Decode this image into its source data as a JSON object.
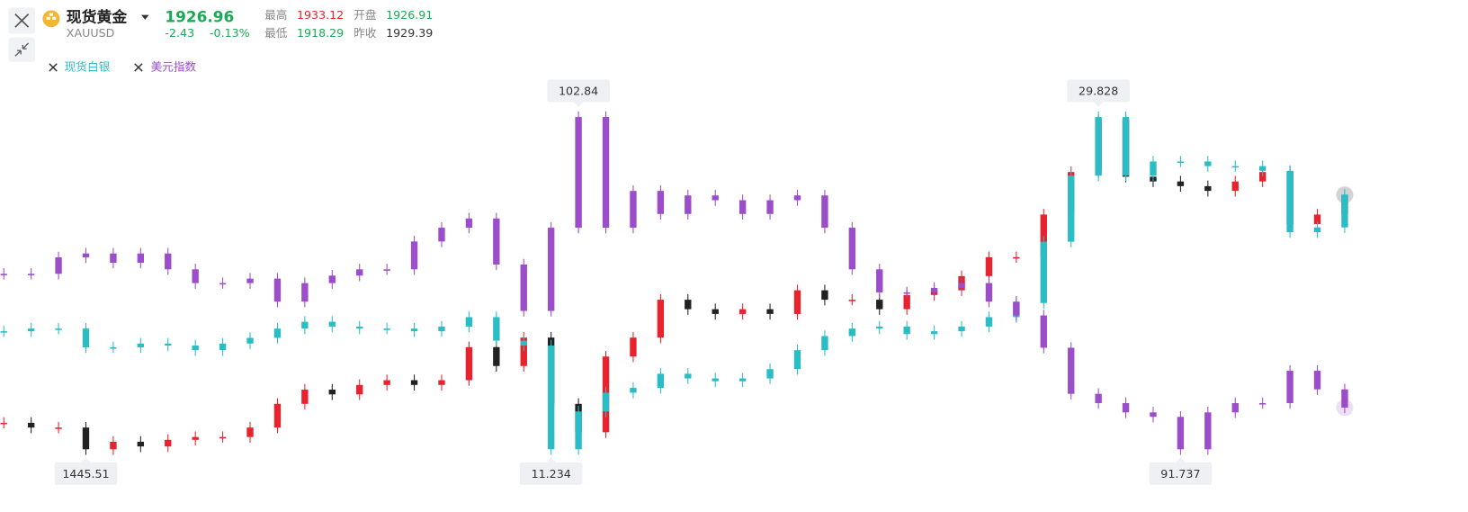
{
  "header": {
    "title": "现货黄金",
    "symbol": "XAUUSD",
    "last": "1926.96",
    "change": "-2.43",
    "change_pct": "-0.13%",
    "high_label": "最高",
    "high": "1933.12",
    "open_label": "开盘",
    "open": "1926.91",
    "low_label": "最低",
    "low": "1918.29",
    "prev_label": "昨收",
    "prev": "1929.39"
  },
  "chart_data": {
    "type": "candlestick",
    "series": [
      {
        "name": "现货黄金",
        "up_color": "#e8232d",
        "down_color": "#222222",
        "ylim": [
          1445.51,
          2075
        ],
        "values": [
          1495.7,
          1486.7,
          1486.7,
          1445.51,
          1459.8,
          1450.9,
          1463.4,
          1468.8,
          1468.8,
          1486.7,
          1531.6,
          1558.5,
          1549.5,
          1567.4,
          1576.4,
          1567.4,
          1576.4,
          1639.1,
          1603.3,
          1657.1,
          1531.6,
          1477.8,
          1621.2,
          1657.1,
          1728.8,
          1710.9,
          1701.9,
          1710.9,
          1701.9,
          1746.7,
          1728.8,
          1728.8,
          1710.9,
          1737.8,
          1746.7,
          1773.6,
          1809.5,
          1809.5,
          1890.2,
          1970.8,
          2069.5,
          1961.9,
          1952.9,
          1944,
          1935,
          1952.9,
          1970.8,
          1872.2,
          1890.2,
          1926.96
        ]
      },
      {
        "name": "现货白银",
        "up_color": "#2bbdc6",
        "down_color": "#2bbdc6",
        "ylim": [
          11.234,
          29.828
        ],
        "values": [
          17.84,
          17.99,
          17.99,
          16.94,
          16.94,
          17.15,
          17.04,
          16.78,
          17.15,
          17.47,
          17.99,
          18.37,
          18.1,
          17.99,
          17.99,
          17.84,
          18.1,
          18.63,
          17.31,
          17.04,
          11.234,
          13.35,
          14.4,
          14.67,
          15.46,
          15.2,
          15.04,
          15.2,
          15.72,
          16.78,
          17.57,
          17.99,
          18.1,
          17.68,
          17.84,
          18.1,
          18.63,
          19.42,
          22.85,
          26.55,
          29.828,
          26.55,
          27.34,
          27.34,
          27.08,
          27.08,
          26.82,
          23.38,
          23.65,
          25.49
        ]
      },
      {
        "name": "美元指数",
        "up_color": "#9b4dca",
        "down_color": "#9b4dca",
        "ylim": [
          91.737,
          102.84
        ],
        "values": [
          97.6,
          97.6,
          98.15,
          98.28,
          97.97,
          98.28,
          97.75,
          97.29,
          97.29,
          97.44,
          96.67,
          97.29,
          97.54,
          97.75,
          97.75,
          98.68,
          99.14,
          99.45,
          97.91,
          96.36,
          99.14,
          102.84,
          99.14,
          100.37,
          99.6,
          100.22,
          100.06,
          99.6,
          100.06,
          100.22,
          99.14,
          97.75,
          96.98,
          96.98,
          97.13,
          97.29,
          96.67,
          96.21,
          95.13,
          93.59,
          93.28,
          92.97,
          92.82,
          91.737,
          92.97,
          93.28,
          93.28,
          94.36,
          93.74,
          93.13
        ]
      }
    ]
  }
}
